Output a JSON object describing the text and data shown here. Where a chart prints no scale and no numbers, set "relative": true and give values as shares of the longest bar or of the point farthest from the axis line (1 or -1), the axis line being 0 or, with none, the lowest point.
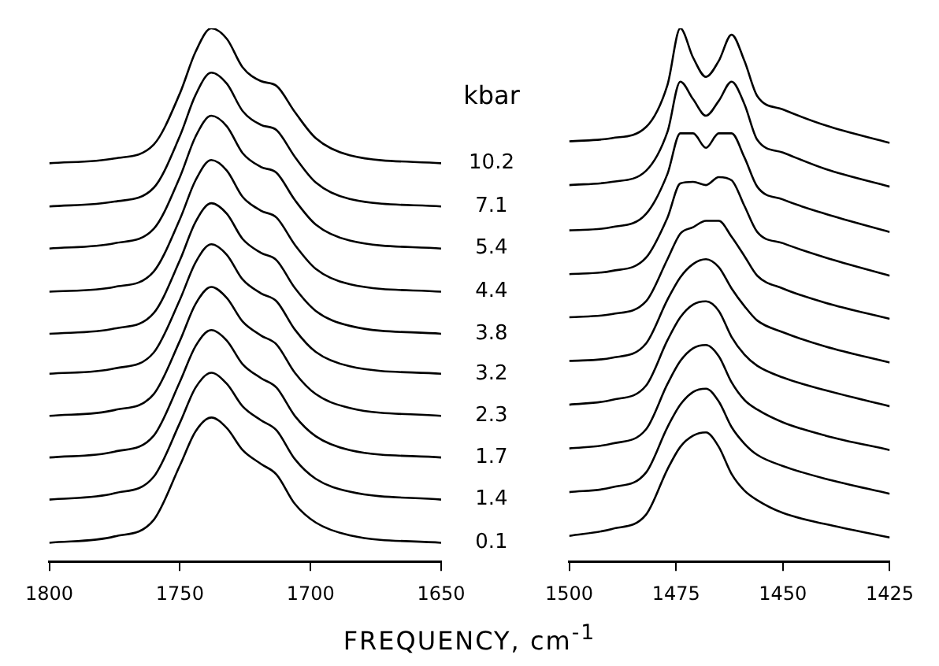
{
  "chart_data": [
    {
      "type": "line",
      "relative": true,
      "legend_title": "kbar",
      "xlabel": "FREQUENCY, cm$^{-1}$",
      "xlim": [
        1800,
        1650
      ],
      "xticks": [
        1800,
        1750,
        1700,
        1650
      ],
      "x": [
        1800,
        1775,
        1760,
        1750,
        1744,
        1738,
        1732,
        1726,
        1719,
        1713,
        1706,
        1698,
        1685,
        1650
      ],
      "series": [
        {
          "name": "10.2",
          "color": "#000000",
          "values": [
            0.747,
            0.756,
            0.782,
            0.878,
            0.956,
            1,
            0.98,
            0.927,
            0.901,
            0.892,
            0.843,
            0.794,
            0.762,
            0.747
          ]
        },
        {
          "name": "7.1",
          "color": "#000000",
          "values": [
            0.666,
            0.675,
            0.701,
            0.798,
            0.875,
            0.917,
            0.896,
            0.845,
            0.819,
            0.809,
            0.759,
            0.711,
            0.68,
            0.666
          ]
        },
        {
          "name": "5.4",
          "color": "#000000",
          "values": [
            0.587,
            0.597,
            0.624,
            0.721,
            0.797,
            0.836,
            0.816,
            0.766,
            0.74,
            0.729,
            0.678,
            0.632,
            0.602,
            0.587
          ]
        },
        {
          "name": "4.4",
          "color": "#000000",
          "values": [
            0.506,
            0.515,
            0.544,
            0.642,
            0.715,
            0.753,
            0.733,
            0.684,
            0.658,
            0.645,
            0.594,
            0.549,
            0.52,
            0.506
          ]
        },
        {
          "name": "3.8",
          "color": "#000000",
          "values": [
            0.427,
            0.437,
            0.466,
            0.565,
            0.637,
            0.672,
            0.652,
            0.605,
            0.579,
            0.565,
            0.513,
            0.47,
            0.442,
            0.427
          ]
        },
        {
          "name": "3.2",
          "color": "#000000",
          "values": [
            0.352,
            0.362,
            0.392,
            0.491,
            0.561,
            0.595,
            0.575,
            0.529,
            0.503,
            0.488,
            0.435,
            0.393,
            0.366,
            0.352
          ]
        },
        {
          "name": "2.3",
          "color": "#000000",
          "values": [
            0.273,
            0.284,
            0.314,
            0.414,
            0.483,
            0.515,
            0.494,
            0.45,
            0.424,
            0.407,
            0.354,
            0.314,
            0.288,
            0.273
          ]
        },
        {
          "name": "1.7",
          "color": "#000000",
          "values": [
            0.195,
            0.206,
            0.236,
            0.337,
            0.404,
            0.434,
            0.414,
            0.37,
            0.344,
            0.326,
            0.273,
            0.235,
            0.209,
            0.195
          ]
        },
        {
          "name": "1.4",
          "color": "#000000",
          "values": [
            0.116,
            0.128,
            0.159,
            0.26,
            0.326,
            0.354,
            0.333,
            0.291,
            0.265,
            0.246,
            0.192,
            0.155,
            0.131,
            0.116
          ]
        },
        {
          "name": "0.1",
          "color": "#000000",
          "values": [
            0.035,
            0.047,
            0.078,
            0.18,
            0.244,
            0.27,
            0.25,
            0.209,
            0.183,
            0.163,
            0.108,
            0.073,
            0.049,
            0.035
          ]
        }
      ]
    },
    {
      "type": "line",
      "relative": true,
      "xlim": [
        1500,
        1425
      ],
      "xticks": [
        1500,
        1475,
        1450,
        1425
      ],
      "x": [
        1500,
        1490,
        1482,
        1477,
        1474,
        1471,
        1468,
        1465,
        1462,
        1459,
        1456,
        1450,
        1440,
        1425
      ],
      "series": [
        {
          "color": "#000000",
          "values": [
            0.788,
            0.794,
            0.815,
            0.894,
            1,
            0.945,
            0.909,
            0.939,
            0.988,
            0.939,
            0.873,
            0.848,
            0.818,
            0.785
          ]
        },
        {
          "color": "#000000",
          "values": [
            0.706,
            0.712,
            0.733,
            0.806,
            0.9,
            0.867,
            0.836,
            0.864,
            0.9,
            0.858,
            0.791,
            0.767,
            0.736,
            0.703
          ]
        },
        {
          "color": "#000000",
          "values": [
            0.621,
            0.627,
            0.652,
            0.727,
            0.803,
            0.803,
            0.776,
            0.803,
            0.803,
            0.758,
            0.703,
            0.679,
            0.652,
            0.618
          ]
        },
        {
          "color": "#000000",
          "values": [
            0.539,
            0.545,
            0.57,
            0.645,
            0.709,
            0.712,
            0.706,
            0.721,
            0.715,
            0.667,
            0.618,
            0.597,
            0.57,
            0.536
          ]
        },
        {
          "color": "#000000",
          "values": [
            0.458,
            0.464,
            0.488,
            0.567,
            0.615,
            0.627,
            0.639,
            0.639,
            0.609,
            0.573,
            0.536,
            0.512,
            0.485,
            0.455
          ]
        },
        {
          "color": "#000000",
          "values": [
            0.376,
            0.382,
            0.409,
            0.491,
            0.533,
            0.558,
            0.567,
            0.552,
            0.512,
            0.479,
            0.452,
            0.43,
            0.403,
            0.373
          ]
        },
        {
          "color": "#000000",
          "values": [
            0.294,
            0.303,
            0.33,
            0.415,
            0.458,
            0.482,
            0.488,
            0.47,
            0.421,
            0.388,
            0.367,
            0.345,
            0.321,
            0.291
          ]
        },
        {
          "color": "#000000",
          "values": [
            0.212,
            0.221,
            0.248,
            0.333,
            0.376,
            0.4,
            0.406,
            0.385,
            0.336,
            0.303,
            0.285,
            0.261,
            0.236,
            0.209
          ]
        },
        {
          "color": "#000000",
          "values": [
            0.13,
            0.139,
            0.167,
            0.252,
            0.294,
            0.318,
            0.324,
            0.3,
            0.252,
            0.221,
            0.2,
            0.179,
            0.155,
            0.127
          ]
        },
        {
          "color": "#000000",
          "values": [
            0.048,
            0.061,
            0.088,
            0.173,
            0.215,
            0.236,
            0.242,
            0.215,
            0.164,
            0.133,
            0.115,
            0.091,
            0.07,
            0.045
          ]
        }
      ]
    }
  ]
}
